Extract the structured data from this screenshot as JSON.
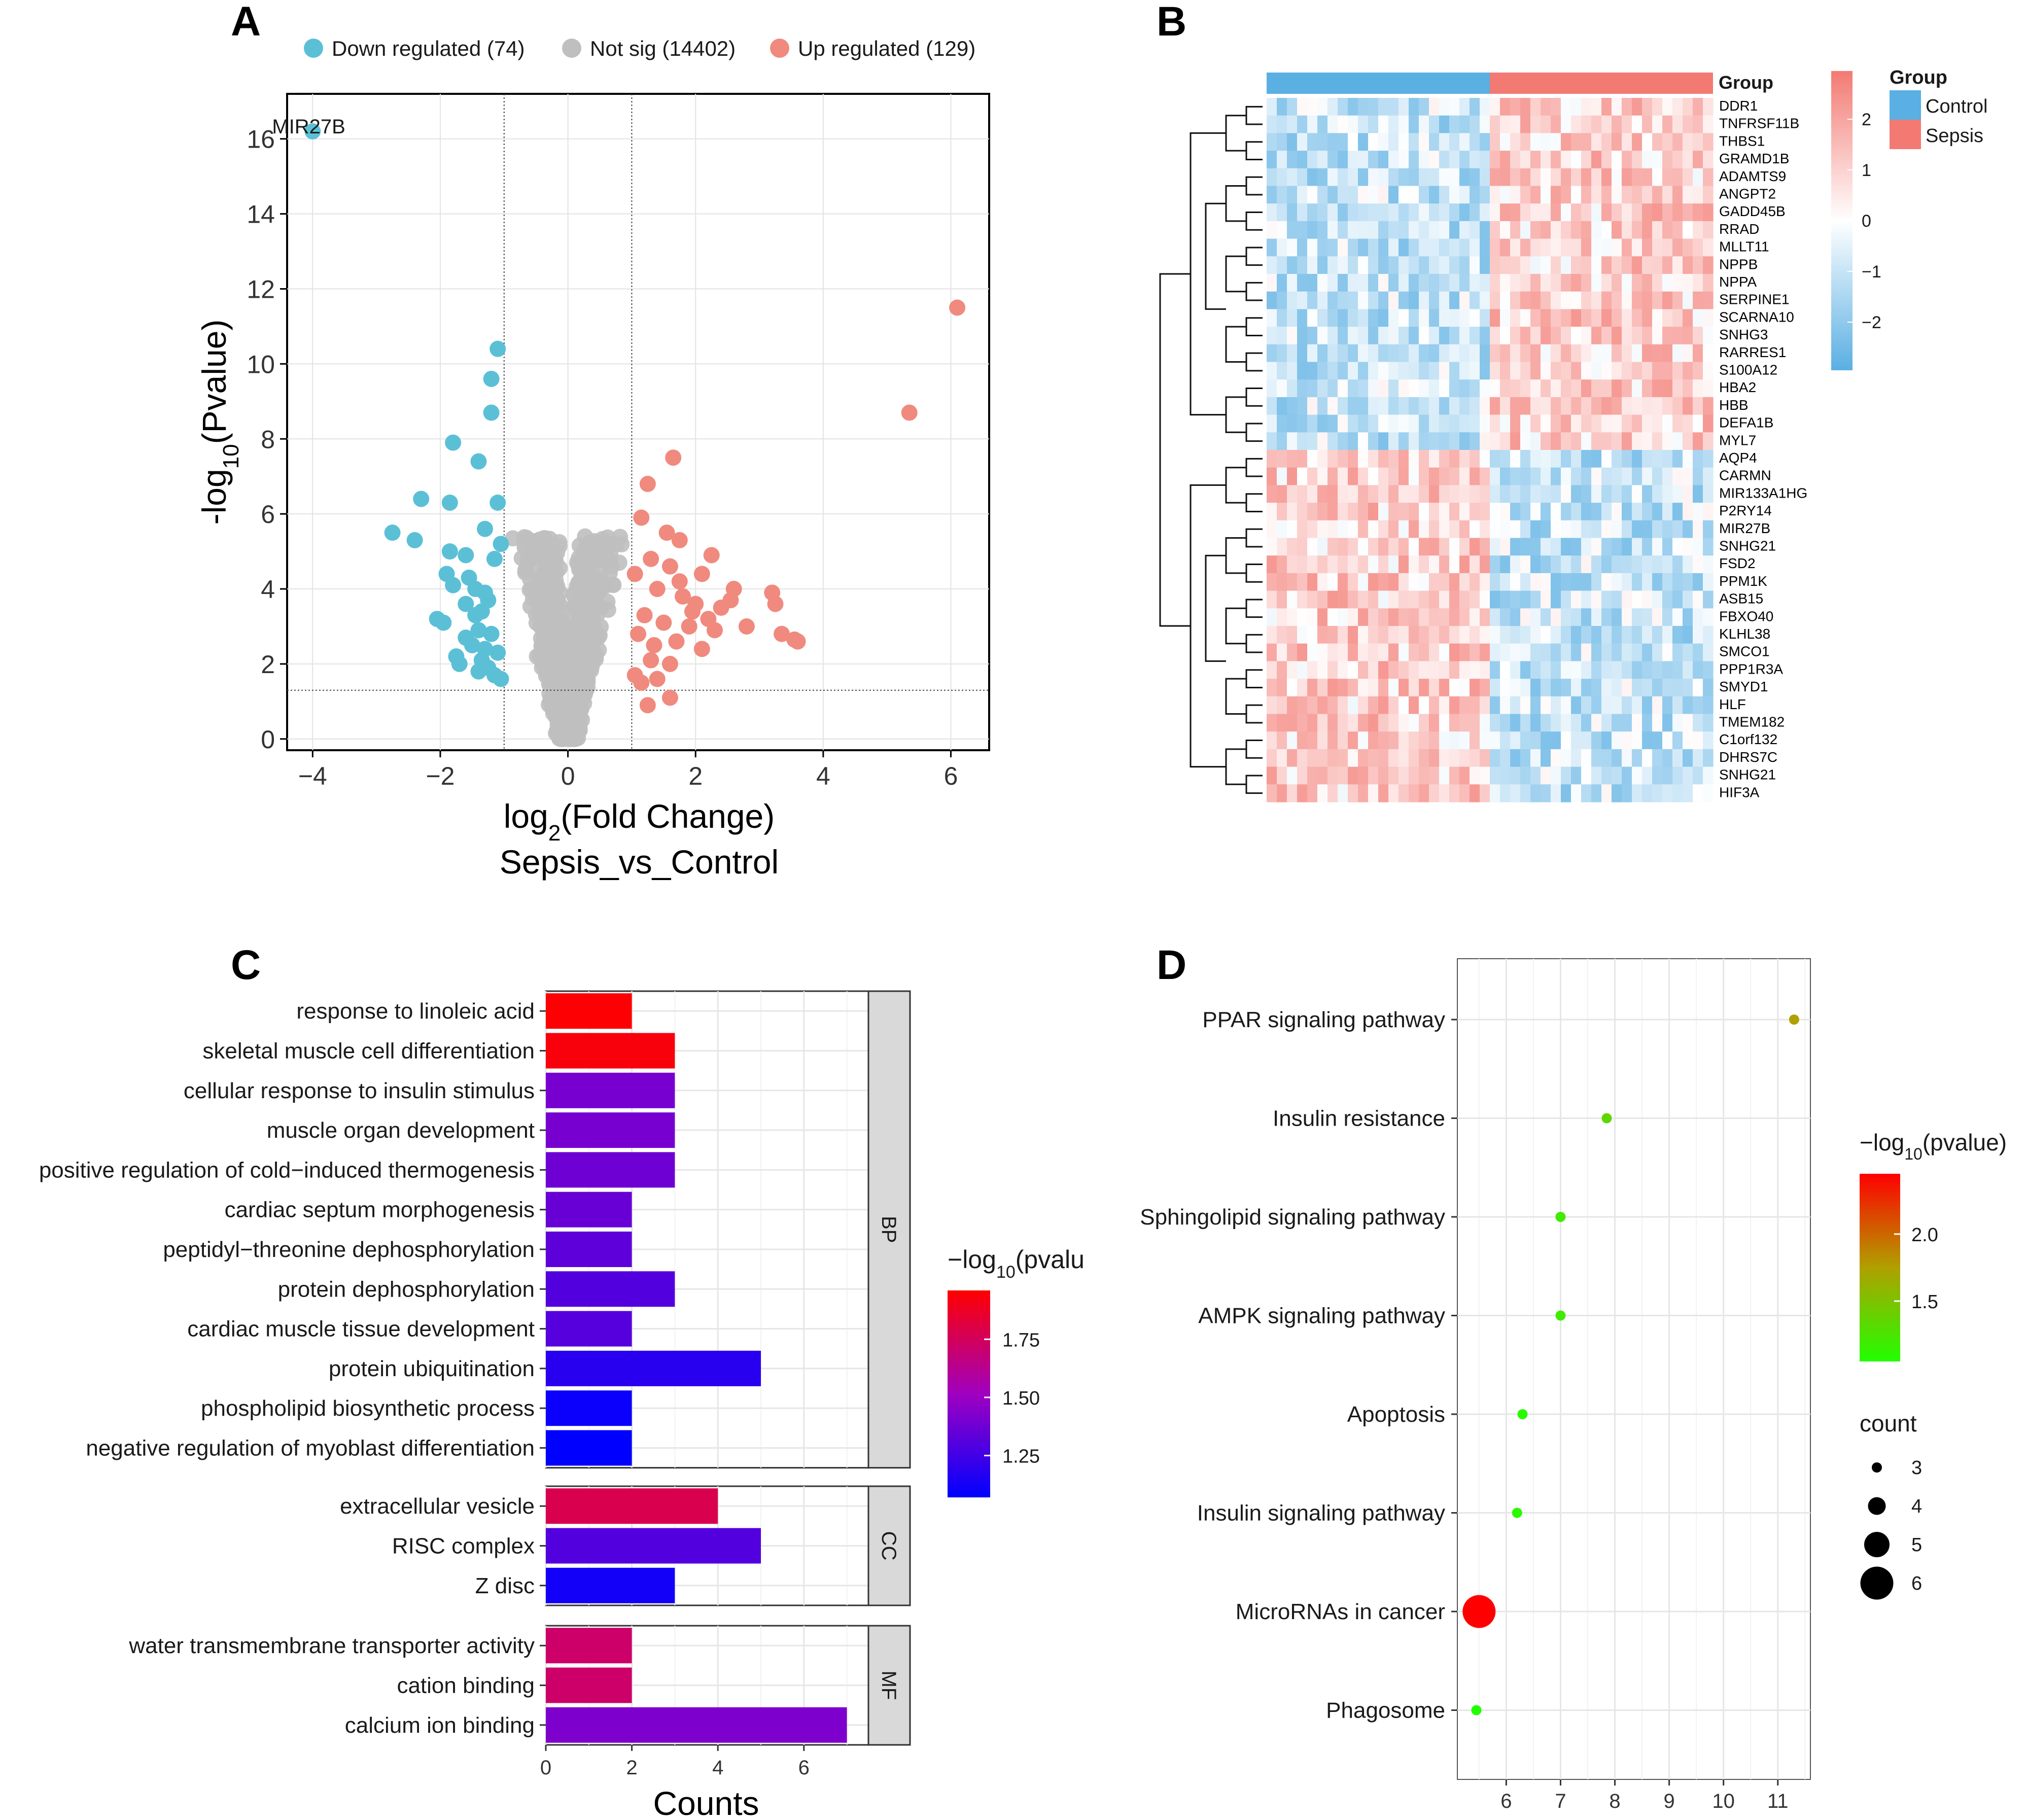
{
  "panels": {
    "a": "A",
    "b": "B",
    "c": "C",
    "d": "D"
  },
  "chart_data": [
    {
      "panel": "A",
      "type": "scatter",
      "title": "",
      "xlabel_main": "log",
      "xlabel_sub": "2",
      "xlabel_rest": "(Fold Change)",
      "xlabel2": "Sepsis_vs_Control",
      "ylabel_main": "-log",
      "ylabel_sub": "10",
      "ylabel_rest": "(Pvalue)",
      "xlim": [
        -4.4,
        6.6
      ],
      "ylim": [
        -0.3,
        17.2
      ],
      "xticks": [
        "−4",
        "−2",
        "0",
        "2",
        "4",
        "6"
      ],
      "xtick_values": [
        -4,
        -2,
        0,
        2,
        4,
        6
      ],
      "yticks": [
        "0",
        "2",
        "4",
        "6",
        "8",
        "10",
        "12",
        "14",
        "16"
      ],
      "ytick_values": [
        0,
        2,
        4,
        6,
        8,
        10,
        12,
        14,
        16
      ],
      "thresholds": {
        "fc": [
          -1,
          1
        ],
        "p": 1.3
      },
      "legend": [
        {
          "label": "Down regulated (74)",
          "color": "#5bc0d6"
        },
        {
          "label": "Not sig (14402)",
          "color": "#bfbfbf"
        },
        {
          "label": "Up regulated (129)",
          "color": "#f08a7e"
        }
      ],
      "annotation": {
        "label": "MIR27B",
        "x": -4.0,
        "y": 16.2,
        "color": "#d62728"
      },
      "down_points": [
        [
          -4.0,
          16.2
        ],
        [
          -1.1,
          10.4
        ],
        [
          -1.2,
          9.6
        ],
        [
          -1.2,
          8.7
        ],
        [
          -1.8,
          7.9
        ],
        [
          -1.4,
          7.4
        ],
        [
          -2.3,
          6.4
        ],
        [
          -1.85,
          6.3
        ],
        [
          -1.1,
          6.3
        ],
        [
          -2.75,
          5.5
        ],
        [
          -2.4,
          5.3
        ],
        [
          -1.3,
          5.6
        ],
        [
          -1.05,
          5.2
        ],
        [
          -1.85,
          5.0
        ],
        [
          -1.6,
          4.9
        ],
        [
          -1.15,
          4.8
        ],
        [
          -1.9,
          4.4
        ],
        [
          -1.55,
          4.3
        ],
        [
          -1.8,
          4.1
        ],
        [
          -1.45,
          4.0
        ],
        [
          -1.3,
          3.9
        ],
        [
          -1.25,
          3.7
        ],
        [
          -1.6,
          3.6
        ],
        [
          -1.35,
          3.4
        ],
        [
          -1.45,
          3.3
        ],
        [
          -2.05,
          3.2
        ],
        [
          -1.95,
          3.1
        ],
        [
          -1.4,
          2.9
        ],
        [
          -1.2,
          2.8
        ],
        [
          -1.6,
          2.7
        ],
        [
          -1.5,
          2.5
        ],
        [
          -1.3,
          2.4
        ],
        [
          -1.1,
          2.3
        ],
        [
          -1.75,
          2.2
        ],
        [
          -1.35,
          2.1
        ],
        [
          -1.25,
          1.9
        ],
        [
          -1.15,
          1.7
        ],
        [
          -1.05,
          1.6
        ],
        [
          -1.4,
          1.8
        ],
        [
          -1.7,
          2.0
        ]
      ],
      "up_points": [
        [
          6.1,
          11.5
        ],
        [
          5.35,
          8.7
        ],
        [
          1.65,
          7.5
        ],
        [
          1.25,
          6.8
        ],
        [
          1.15,
          5.9
        ],
        [
          1.55,
          5.5
        ],
        [
          1.75,
          5.3
        ],
        [
          2.25,
          4.9
        ],
        [
          1.3,
          4.8
        ],
        [
          1.6,
          4.6
        ],
        [
          2.1,
          4.4
        ],
        [
          2.6,
          4.0
        ],
        [
          3.2,
          3.9
        ],
        [
          3.25,
          3.6
        ],
        [
          1.05,
          4.4
        ],
        [
          1.4,
          4.0
        ],
        [
          1.8,
          3.8
        ],
        [
          2.0,
          3.6
        ],
        [
          2.4,
          3.5
        ],
        [
          1.2,
          3.3
        ],
        [
          1.5,
          3.1
        ],
        [
          1.9,
          3.0
        ],
        [
          2.3,
          2.9
        ],
        [
          2.8,
          3.0
        ],
        [
          3.35,
          2.8
        ],
        [
          3.55,
          2.65
        ],
        [
          3.6,
          2.6
        ],
        [
          1.1,
          2.8
        ],
        [
          1.7,
          2.6
        ],
        [
          2.1,
          2.4
        ],
        [
          1.3,
          2.1
        ],
        [
          1.6,
          2.0
        ],
        [
          1.05,
          1.7
        ],
        [
          1.4,
          1.6
        ],
        [
          1.15,
          1.5
        ],
        [
          1.6,
          1.1
        ],
        [
          1.25,
          0.9
        ],
        [
          1.75,
          4.2
        ],
        [
          2.2,
          3.2
        ],
        [
          1.35,
          2.5
        ],
        [
          2.55,
          3.7
        ],
        [
          1.95,
          3.4
        ]
      ]
    },
    {
      "panel": "B",
      "type": "heatmap",
      "title": "",
      "group_label": "Group",
      "legend_title": "Group",
      "groups": [
        {
          "label": "Control",
          "color": "#5aafe3"
        },
        {
          "label": "Sepsis",
          "color": "#f37a73"
        }
      ],
      "scale_ticks": [
        "2",
        "1",
        "0",
        "−1",
        "−2"
      ],
      "scale_values": [
        2,
        1,
        0,
        -1,
        -2
      ],
      "n_control": 22,
      "n_sepsis": 22,
      "genes": [
        "DDR1",
        "TNFRSF11B",
        "THBS1",
        "GRAMD1B",
        "ADAMTS9",
        "ANGPT2",
        "GADD45B",
        "RRAD",
        "MLLT11",
        "NPPB",
        "NPPA",
        "SERPINE1",
        "SCARNA10",
        "SNHG3",
        "RARRES1",
        "S100A12",
        "HBA2",
        "HBB",
        "DEFA1B",
        "MYL7",
        "AQP4",
        "CARMN",
        "MIR133A1HG",
        "P2RY14",
        "MIR27B",
        "SNHG21",
        "FSD2",
        "PPM1K",
        "ASB15",
        "FBXO40",
        "KLHL38",
        "SMCO1",
        "PPP1R3A",
        "SMYD1",
        "HLF",
        "TMEM182",
        "C1orf132",
        "DHRS7C",
        "SNHG21",
        "HIF3A"
      ],
      "n_up_genes": 20
    },
    {
      "panel": "C",
      "type": "bar",
      "title": "",
      "xlabel": "Counts",
      "xlim": [
        0,
        7.5
      ],
      "xticks": [
        "0",
        "2",
        "4",
        "6"
      ],
      "xtick_values": [
        0,
        2,
        4,
        6
      ],
      "color_title_main": "−log",
      "color_title_sub": "10",
      "color_title_rest": "(pvalu",
      "color_ticks": [
        "1.75",
        "1.50",
        "1.25"
      ],
      "color_tick_values": [
        1.75,
        1.5,
        1.25
      ],
      "color_range": [
        1.07,
        1.96
      ],
      "facets": [
        {
          "name": "BP",
          "terms": [
            {
              "label": "response to linoleic acid",
              "count": 2,
              "logp": 1.95
            },
            {
              "label": "skeletal muscle cell differentiation",
              "count": 3,
              "logp": 1.93
            },
            {
              "label": "cellular response to insulin stimulus",
              "count": 3,
              "logp": 1.4
            },
            {
              "label": "muscle organ development",
              "count": 3,
              "logp": 1.4
            },
            {
              "label": "positive regulation of cold−induced thermogenesis",
              "count": 3,
              "logp": 1.38
            },
            {
              "label": "cardiac septum morphogenesis",
              "count": 2,
              "logp": 1.36
            },
            {
              "label": "peptidyl−threonine dephosphorylation",
              "count": 2,
              "logp": 1.33
            },
            {
              "label": "protein dephosphorylation",
              "count": 3,
              "logp": 1.3
            },
            {
              "label": "cardiac muscle tissue development",
              "count": 2,
              "logp": 1.31
            },
            {
              "label": "protein ubiquitination",
              "count": 5,
              "logp": 1.18
            },
            {
              "label": "phospholipid biosynthetic process",
              "count": 2,
              "logp": 1.1
            },
            {
              "label": "negative regulation of myoblast differentiation",
              "count": 2,
              "logp": 1.07
            }
          ]
        },
        {
          "name": "CC",
          "terms": [
            {
              "label": "extracellular vesicle",
              "count": 4,
              "logp": 1.78
            },
            {
              "label": "RISC complex",
              "count": 5,
              "logp": 1.3
            },
            {
              "label": "Z disc",
              "count": 3,
              "logp": 1.12
            }
          ]
        },
        {
          "name": "MF",
          "terms": [
            {
              "label": "water transmembrane transporter activity",
              "count": 2,
              "logp": 1.72
            },
            {
              "label": "cation binding",
              "count": 2,
              "logp": 1.72
            },
            {
              "label": "calcium ion binding",
              "count": 7,
              "logp": 1.42
            }
          ]
        }
      ]
    },
    {
      "panel": "D",
      "type": "scatter",
      "title": "",
      "xlim": [
        5.1,
        11.6
      ],
      "xticks": [
        "6",
        "7",
        "8",
        "9",
        "10",
        "11"
      ],
      "xtick_values": [
        6,
        7,
        8,
        9,
        10,
        11
      ],
      "color_title_main": "−log",
      "color_title_sub": "10",
      "color_title_rest": "(pvalue)",
      "color_ticks": [
        "2.0",
        "1.5"
      ],
      "color_tick_values": [
        2.0,
        1.5
      ],
      "color_range": [
        1.05,
        2.45
      ],
      "size_title": "count",
      "size_ticks": [
        "3",
        "4",
        "5",
        "6"
      ],
      "size_values": [
        3,
        4,
        5,
        6
      ],
      "pathways": [
        {
          "label": "PPAR signaling pathway",
          "x": 11.3,
          "count": 3,
          "logp": 1.75
        },
        {
          "label": "Insulin resistance",
          "x": 7.85,
          "count": 3,
          "logp": 1.35
        },
        {
          "label": "Sphingolipid signaling pathway",
          "x": 7.0,
          "count": 3,
          "logp": 1.2
        },
        {
          "label": "AMPK signaling pathway",
          "x": 7.0,
          "count": 3,
          "logp": 1.2
        },
        {
          "label": "Apoptosis",
          "x": 6.3,
          "count": 3,
          "logp": 1.08
        },
        {
          "label": "Insulin signaling pathway",
          "x": 6.2,
          "count": 3,
          "logp": 1.1
        },
        {
          "label": "MicroRNAs in cancer",
          "x": 5.5,
          "count": 6,
          "logp": 2.45
        },
        {
          "label": "Phagosome",
          "x": 5.45,
          "count": 3,
          "logp": 1.05
        }
      ]
    }
  ]
}
